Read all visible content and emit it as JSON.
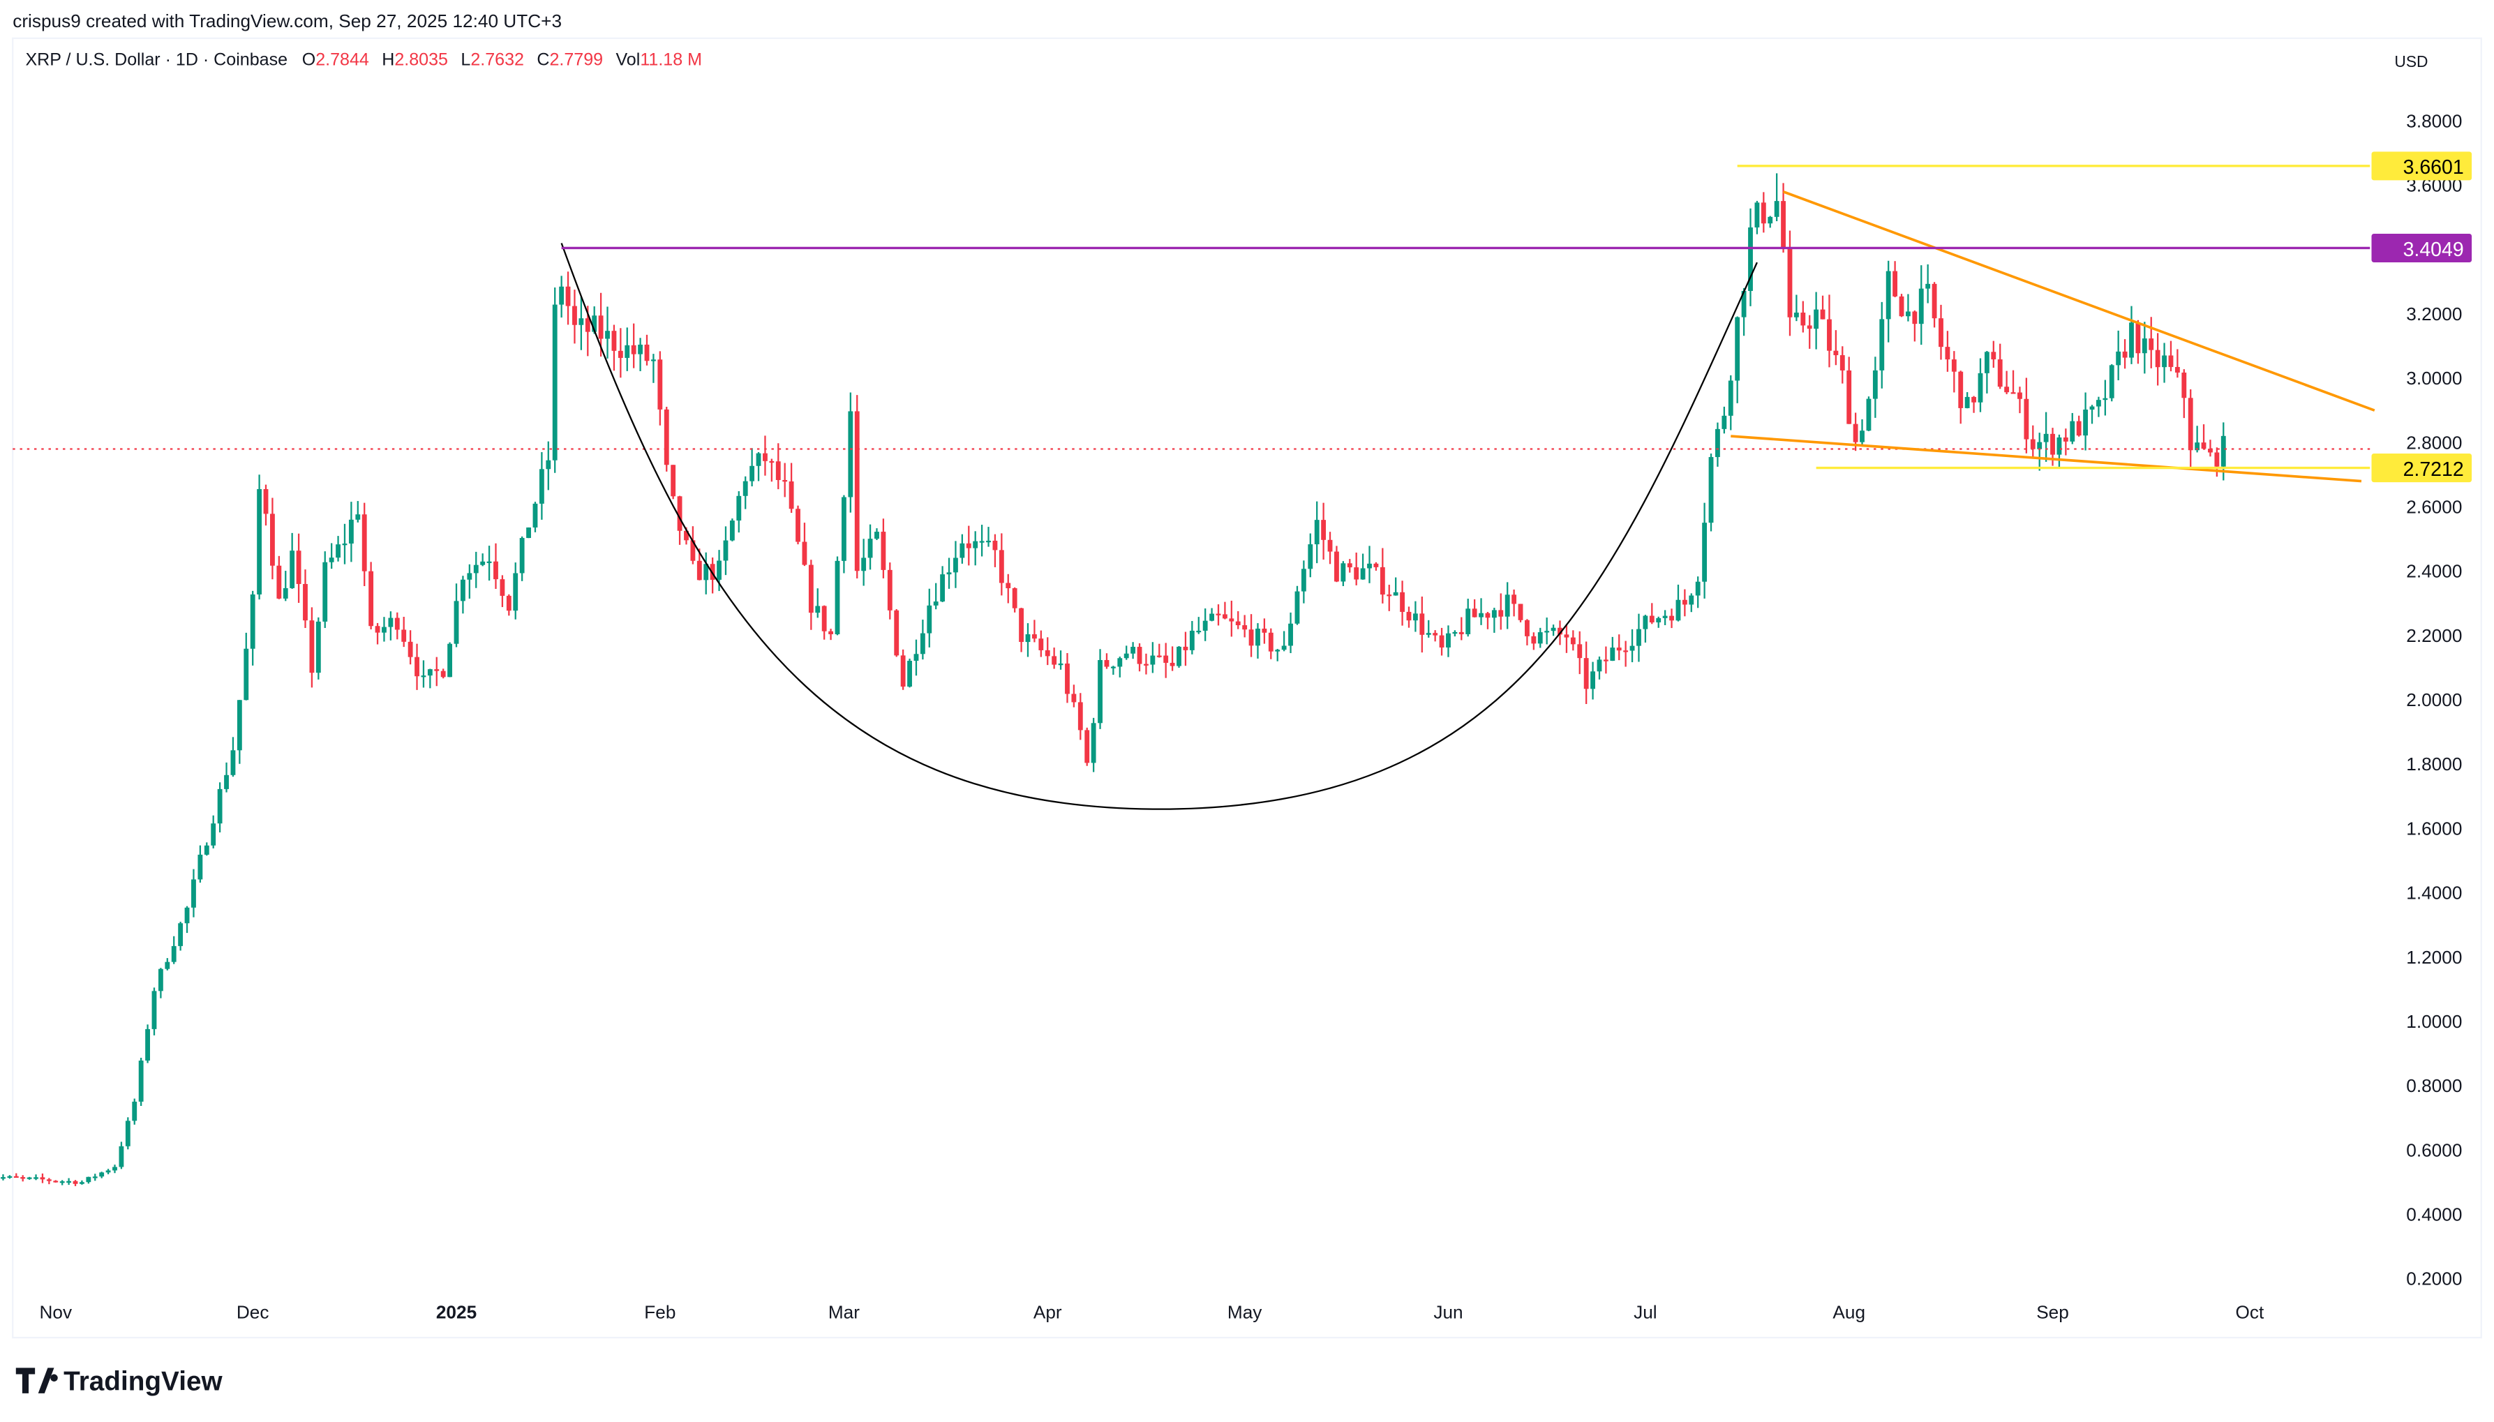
{
  "header": {
    "credit": "crispus9 created with TradingView.com, Sep 27, 2025 12:40 UTC+3"
  },
  "legend": {
    "symbol": "XRP / U.S. Dollar · 1D · Coinbase",
    "o_label": "O",
    "o": "2.7844",
    "h_label": "H",
    "h": "2.8035",
    "l_label": "L",
    "l": "2.7632",
    "c_label": "C",
    "c": "2.7799",
    "vol_label": "Vol",
    "vol": "11.18 M"
  },
  "currency": "USD",
  "brand": "TradingView",
  "colors": {
    "up": "#089981",
    "down": "#f23645",
    "yellow": "#ffeb3b",
    "purple": "#9c27b0",
    "orange": "#ff9800",
    "last_price": "#f23645"
  },
  "chart_data": {
    "type": "candlestick",
    "symbol": "XRPUSD",
    "ylim": [
      0.2,
      3.8
    ],
    "y_ticks": [
      "3.8000",
      "3.6000",
      "3.2000",
      "3.0000",
      "2.8000",
      "2.6000",
      "2.4000",
      "2.2000",
      "2.0000",
      "1.8000",
      "1.6000",
      "1.4000",
      "1.2000",
      "1.0000",
      "0.8000",
      "0.6000",
      "0.4000",
      "0.2000"
    ],
    "x_ticks": [
      {
        "label": "Nov",
        "date": "2024-11-01"
      },
      {
        "label": "Dec",
        "date": "2024-12-01"
      },
      {
        "label": "2025",
        "date": "2025-01-01"
      },
      {
        "label": "Feb",
        "date": "2025-02-01"
      },
      {
        "label": "Mar",
        "date": "2025-03-01"
      },
      {
        "label": "Apr",
        "date": "2025-04-01"
      },
      {
        "label": "May",
        "date": "2025-05-01"
      },
      {
        "label": "Jun",
        "date": "2025-06-01"
      },
      {
        "label": "Jul",
        "date": "2025-07-01"
      },
      {
        "label": "Aug",
        "date": "2025-08-01"
      },
      {
        "label": "Sep",
        "date": "2025-09-01"
      },
      {
        "label": "Oct",
        "date": "2025-10-01"
      }
    ],
    "approx_closes": [
      [
        "2024-10-20",
        0.52
      ],
      [
        "2024-11-05",
        0.5
      ],
      [
        "2024-11-10",
        0.55
      ],
      [
        "2024-11-13",
        0.75
      ],
      [
        "2024-11-16",
        1.1
      ],
      [
        "2024-11-21",
        1.35
      ],
      [
        "2024-11-23",
        1.5
      ],
      [
        "2024-11-28",
        1.85
      ],
      [
        "2024-12-01",
        2.3
      ],
      [
        "2024-12-02",
        2.65
      ],
      [
        "2024-12-03",
        2.6
      ],
      [
        "2024-12-05",
        2.3
      ],
      [
        "2024-12-07",
        2.45
      ],
      [
        "2024-12-10",
        2.1
      ],
      [
        "2024-12-12",
        2.4
      ],
      [
        "2024-12-15",
        2.5
      ],
      [
        "2024-12-17",
        2.6
      ],
      [
        "2024-12-19",
        2.2
      ],
      [
        "2024-12-23",
        2.25
      ],
      [
        "2024-12-27",
        2.05
      ],
      [
        "2024-12-30",
        2.1
      ],
      [
        "2025-01-02",
        2.4
      ],
      [
        "2025-01-06",
        2.45
      ],
      [
        "2025-01-09",
        2.3
      ],
      [
        "2025-01-12",
        2.55
      ],
      [
        "2025-01-15",
        2.75
      ],
      [
        "2025-01-16",
        3.2
      ],
      [
        "2025-01-17",
        3.3
      ],
      [
        "2025-01-19",
        3.15
      ],
      [
        "2025-01-22",
        3.15
      ],
      [
        "2025-01-26",
        3.1
      ],
      [
        "2025-01-31",
        3.05
      ],
      [
        "2025-02-02",
        2.7
      ],
      [
        "2025-02-03",
        2.6
      ],
      [
        "2025-02-06",
        2.4
      ],
      [
        "2025-02-10",
        2.4
      ],
      [
        "2025-02-14",
        2.7
      ],
      [
        "2025-02-17",
        2.75
      ],
      [
        "2025-02-20",
        2.65
      ],
      [
        "2025-02-24",
        2.3
      ],
      [
        "2025-02-27",
        2.2
      ],
      [
        "2025-03-02",
        2.9
      ],
      [
        "2025-03-03",
        2.4
      ],
      [
        "2025-03-06",
        2.5
      ],
      [
        "2025-03-10",
        2.05
      ],
      [
        "2025-03-14",
        2.3
      ],
      [
        "2025-03-19",
        2.5
      ],
      [
        "2025-03-24",
        2.45
      ],
      [
        "2025-03-28",
        2.2
      ],
      [
        "2025-04-03",
        2.1
      ],
      [
        "2025-04-06",
        1.9
      ],
      [
        "2025-04-07",
        1.8
      ],
      [
        "2025-04-09",
        2.1
      ],
      [
        "2025-04-13",
        2.15
      ],
      [
        "2025-04-20",
        2.1
      ],
      [
        "2025-04-23",
        2.2
      ],
      [
        "2025-04-27",
        2.25
      ],
      [
        "2025-05-02",
        2.2
      ],
      [
        "2025-05-07",
        2.15
      ],
      [
        "2025-05-09",
        2.35
      ],
      [
        "2025-05-12",
        2.55
      ],
      [
        "2025-05-15",
        2.4
      ],
      [
        "2025-05-20",
        2.4
      ],
      [
        "2025-05-25",
        2.3
      ],
      [
        "2025-05-31",
        2.15
      ],
      [
        "2025-06-04",
        2.25
      ],
      [
        "2025-06-10",
        2.3
      ],
      [
        "2025-06-14",
        2.2
      ],
      [
        "2025-06-19",
        2.2
      ],
      [
        "2025-06-22",
        2.05
      ],
      [
        "2025-06-26",
        2.15
      ],
      [
        "2025-07-02",
        2.25
      ],
      [
        "2025-07-07",
        2.3
      ],
      [
        "2025-07-09",
        2.4
      ],
      [
        "2025-07-11",
        2.75
      ],
      [
        "2025-07-13",
        2.9
      ],
      [
        "2025-07-17",
        3.45
      ],
      [
        "2025-07-18",
        3.5
      ],
      [
        "2025-07-21",
        3.55
      ],
      [
        "2025-07-22",
        3.4
      ],
      [
        "2025-07-23",
        3.15
      ],
      [
        "2025-07-27",
        3.2
      ],
      [
        "2025-07-31",
        3.0
      ],
      [
        "2025-08-02",
        2.8
      ],
      [
        "2025-08-05",
        3.0
      ],
      [
        "2025-08-07",
        3.3
      ],
      [
        "2025-08-10",
        3.2
      ],
      [
        "2025-08-13",
        3.25
      ],
      [
        "2025-08-15",
        3.1
      ],
      [
        "2025-08-19",
        2.9
      ],
      [
        "2025-08-22",
        3.05
      ],
      [
        "2025-08-26",
        2.95
      ],
      [
        "2025-08-29",
        2.8
      ],
      [
        "2025-09-01",
        2.8
      ],
      [
        "2025-09-05",
        2.85
      ],
      [
        "2025-09-08",
        2.9
      ],
      [
        "2025-09-13",
        3.15
      ],
      [
        "2025-09-16",
        3.05
      ],
      [
        "2025-09-18",
        3.05
      ],
      [
        "2025-09-21",
        2.95
      ],
      [
        "2025-09-22",
        2.8
      ],
      [
        "2025-09-25",
        2.75
      ],
      [
        "2025-09-27",
        2.78
      ]
    ],
    "last_price": 2.7799,
    "horizontal_levels": [
      {
        "value": 3.6601,
        "label": "3.6601",
        "color": "#ffeb3b",
        "from": "2025-07-15"
      },
      {
        "value": 3.4049,
        "label": "3.4049",
        "color": "#9c27b0",
        "from": "2025-01-17"
      },
      {
        "value": 2.7212,
        "label": "2.7212",
        "color": "#ffeb3b",
        "from": "2025-07-27"
      }
    ],
    "trendlines": [
      {
        "name": "falling-wedge-upper",
        "color": "#ff9800",
        "points": [
          [
            "2025-07-22",
            3.58
          ],
          [
            "2025-10-20",
            2.9
          ]
        ]
      },
      {
        "name": "falling-wedge-lower",
        "color": "#ff9800",
        "points": [
          [
            "2025-07-14",
            2.82
          ],
          [
            "2025-10-18",
            2.68
          ]
        ]
      }
    ],
    "cup_curve": {
      "color": "#000000",
      "start": [
        "2025-01-17",
        3.42
      ],
      "bottom": [
        "2025-04-18",
        1.66
      ],
      "end": [
        "2025-07-18",
        3.36
      ]
    }
  }
}
